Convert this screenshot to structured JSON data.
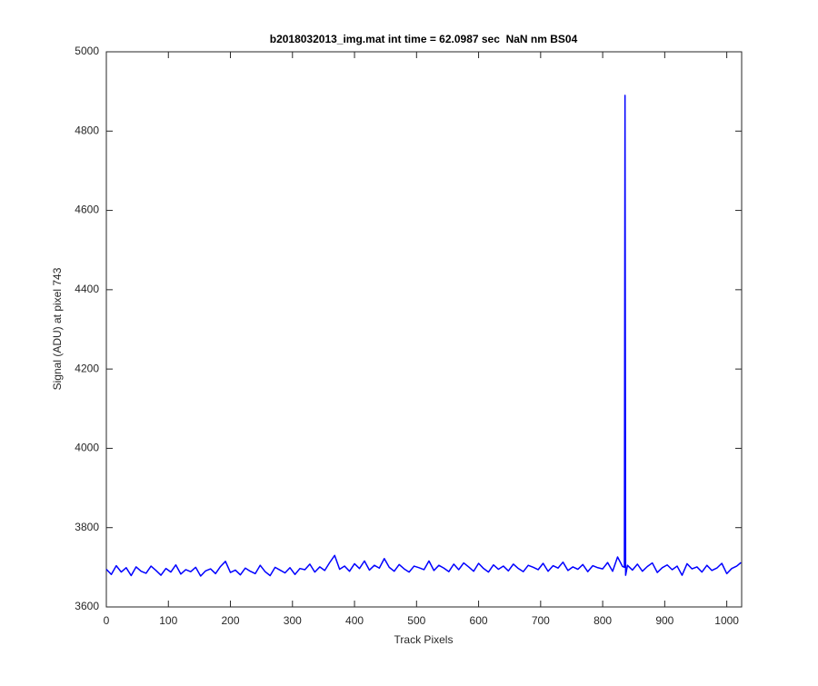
{
  "chart_data": {
    "type": "line",
    "title": "b2018032013_img.mat int time = 62.0987 sec  NaN nm BS04",
    "x_label": "Track Pixels",
    "y_label": "Signal (ADU) at pixel 743",
    "xlim": [
      0,
      1024
    ],
    "ylim": [
      3600,
      5000
    ],
    "xticks": [
      0,
      100,
      200,
      300,
      400,
      500,
      600,
      700,
      800,
      900,
      1000
    ],
    "yticks": [
      3600,
      3800,
      4000,
      4200,
      4400,
      4600,
      4800,
      5000
    ],
    "x": [
      0,
      8,
      16,
      24,
      32,
      40,
      48,
      56,
      64,
      72,
      80,
      88,
      96,
      104,
      112,
      120,
      128,
      136,
      144,
      152,
      160,
      168,
      176,
      184,
      192,
      200,
      208,
      216,
      224,
      232,
      240,
      248,
      256,
      264,
      272,
      280,
      288,
      296,
      304,
      312,
      320,
      328,
      336,
      344,
      352,
      360,
      368,
      376,
      384,
      392,
      400,
      408,
      416,
      424,
      432,
      440,
      448,
      456,
      464,
      472,
      480,
      488,
      496,
      504,
      512,
      520,
      528,
      536,
      544,
      552,
      560,
      568,
      576,
      584,
      592,
      600,
      608,
      616,
      624,
      632,
      640,
      648,
      656,
      664,
      672,
      680,
      688,
      696,
      704,
      712,
      720,
      728,
      736,
      744,
      752,
      760,
      768,
      776,
      784,
      792,
      800,
      808,
      816,
      824,
      832,
      835,
      836,
      837,
      840,
      848,
      856,
      864,
      872,
      880,
      888,
      896,
      904,
      912,
      920,
      928,
      936,
      944,
      952,
      960,
      968,
      976,
      984,
      992,
      1000,
      1008,
      1016,
      1023
    ],
    "series": [
      {
        "color": "#0000ff",
        "values": [
          3695,
          3682,
          3704,
          3688,
          3699,
          3679,
          3701,
          3690,
          3685,
          3703,
          3692,
          3680,
          3697,
          3688,
          3706,
          3683,
          3694,
          3689,
          3700,
          3678,
          3691,
          3696,
          3684,
          3702,
          3715,
          3687,
          3693,
          3681,
          3698,
          3690,
          3684,
          3705,
          3689,
          3679,
          3700,
          3693,
          3686,
          3699,
          3682,
          3697,
          3694,
          3708,
          3688,
          3701,
          3692,
          3712,
          3730,
          3695,
          3703,
          3690,
          3709,
          3697,
          3716,
          3693,
          3705,
          3698,
          3722,
          3700,
          3690,
          3707,
          3696,
          3688,
          3703,
          3699,
          3694,
          3716,
          3692,
          3705,
          3698,
          3689,
          3708,
          3694,
          3711,
          3701,
          3690,
          3710,
          3697,
          3688,
          3706,
          3695,
          3703,
          3691,
          3708,
          3697,
          3689,
          3705,
          3700,
          3694,
          3710,
          3690,
          3704,
          3698,
          3713,
          3692,
          3701,
          3695,
          3707,
          3689,
          3704,
          3699,
          3696,
          3712,
          3690,
          3726,
          3702,
          3700,
          4890,
          3680,
          3705,
          3693,
          3708,
          3690,
          3702,
          3711,
          3687,
          3699,
          3706,
          3694,
          3703,
          3680,
          3709,
          3696,
          3701,
          3688,
          3705,
          3692,
          3698,
          3710,
          3684,
          3697,
          3703,
          3712
        ]
      }
    ]
  }
}
